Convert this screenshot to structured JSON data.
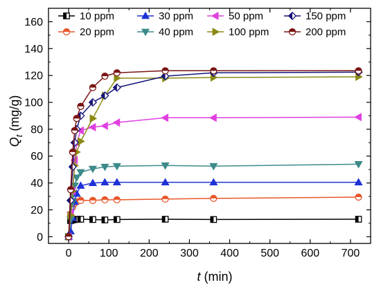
{
  "chart_data": {
    "type": "line",
    "xlabel_symbol": "t",
    "xlabel_unit": " (min)",
    "ylabel_symbol": "Q",
    "ylabel_sub": "t",
    "ylabel_unit": " (mg/g)",
    "xlim": [
      -50,
      750
    ],
    "ylim": [
      -5,
      170
    ],
    "xticks": [
      0,
      100,
      200,
      300,
      400,
      500,
      600,
      700
    ],
    "yticks": [
      0,
      20,
      40,
      60,
      80,
      100,
      120,
      140,
      160
    ],
    "grid": false,
    "legend_position": "top",
    "x": [
      0,
      5,
      10,
      15,
      20,
      30,
      60,
      90,
      120,
      240,
      360,
      720
    ],
    "series": [
      {
        "name": "10 ppm",
        "color": "#000000",
        "marker": "square",
        "values": [
          0,
          12,
          12.5,
          12.8,
          13,
          13,
          12.8,
          12.5,
          12.8,
          13,
          12.8,
          13
        ]
      },
      {
        "name": "20 ppm",
        "color": "#e8562a",
        "marker": "circle-half",
        "values": [
          0,
          16,
          22,
          25,
          26,
          27,
          27,
          27.5,
          27.5,
          28,
          28.5,
          29.5
        ]
      },
      {
        "name": "30 ppm",
        "color": "#1f32d6",
        "marker": "triangle-up",
        "values": [
          0,
          4,
          14,
          26,
          32,
          38,
          40,
          40.5,
          40.5,
          40.5,
          40.5,
          40.5
        ]
      },
      {
        "name": "40 ppm",
        "color": "#3c8a8a",
        "marker": "triangle-down",
        "values": [
          0,
          13,
          26,
          38,
          44,
          48,
          50.5,
          52,
          52.5,
          53,
          52.5,
          54
        ]
      },
      {
        "name": "50 ppm",
        "color": "#e040e0",
        "marker": "triangle-left",
        "values": [
          0,
          18,
          34,
          57,
          70,
          79,
          81.5,
          82.5,
          85,
          88.5,
          88.5,
          89
        ]
      },
      {
        "name": "100 ppm",
        "color": "#8a8a14",
        "marker": "triangle-right",
        "values": [
          0,
          16,
          34,
          53,
          63,
          71,
          88,
          105,
          118,
          118,
          118.5,
          119
        ]
      },
      {
        "name": "150 ppm",
        "color": "#141478",
        "marker": "diamond-half",
        "values": [
          0,
          27,
          52,
          70,
          80,
          90,
          100,
          105,
          111,
          119.5,
          122,
          122.5
        ]
      },
      {
        "name": "200 ppm",
        "color": "#7a1414",
        "marker": "circle-half",
        "values": [
          0,
          35,
          63,
          79,
          88,
          97,
          111,
          119.5,
          122,
          123.5,
          123.5,
          123.5
        ]
      }
    ]
  }
}
